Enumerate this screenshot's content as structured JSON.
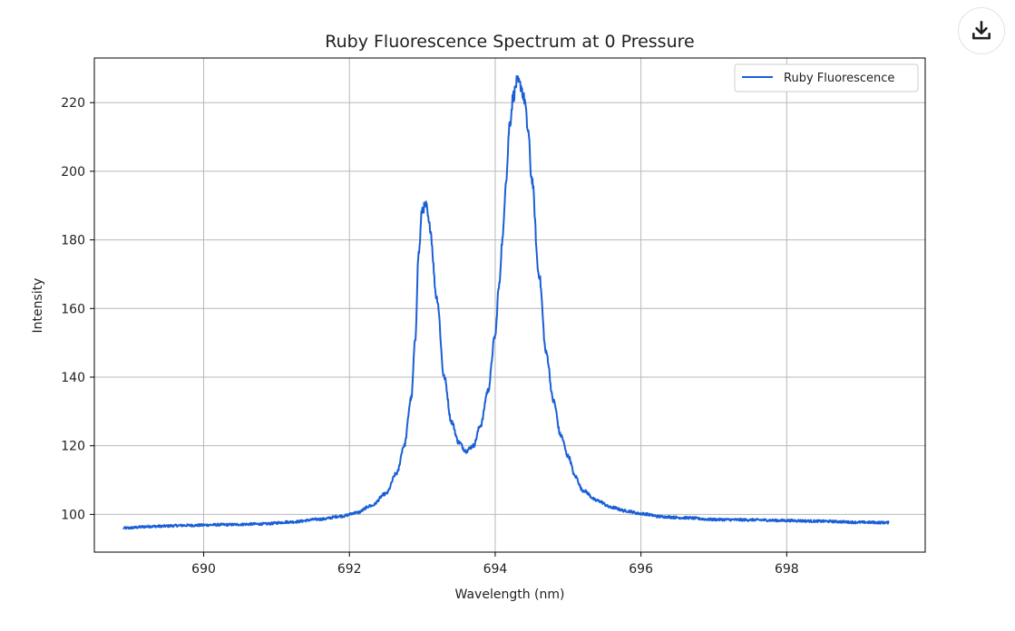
{
  "toolbar": {
    "download_icon": "download-icon"
  },
  "colors": {
    "series_line": "#1a5fd6",
    "grid": "#b8b8b8",
    "axis": "#000000",
    "legend_border": "#cccccc"
  },
  "chart_data": {
    "type": "line",
    "title": "Ruby Fluorescence Spectrum at 0 Pressure",
    "xlabel": "Wavelength (nm)",
    "ylabel": "Intensity",
    "xlim": [
      688.5,
      699.9
    ],
    "ylim": [
      89,
      233
    ],
    "xticks": [
      690,
      692,
      694,
      696,
      698
    ],
    "yticks": [
      100,
      120,
      140,
      160,
      180,
      200,
      220
    ],
    "grid": true,
    "legend_position": "top-right",
    "series": [
      {
        "name": "Ruby Fluorescence",
        "color": "#1a5fd6",
        "x": [
          688.9,
          689.3,
          689.8,
          690.3,
          690.8,
          691.2,
          691.6,
          691.9,
          692.1,
          692.3,
          692.5,
          692.65,
          692.75,
          692.85,
          692.9,
          692.95,
          693.0,
          693.05,
          693.1,
          693.2,
          693.3,
          693.4,
          693.5,
          693.6,
          693.7,
          693.8,
          693.9,
          694.0,
          694.05,
          694.1,
          694.15,
          694.2,
          694.25,
          694.3,
          694.35,
          694.4,
          694.45,
          694.5,
          694.6,
          694.7,
          694.8,
          694.9,
          695.0,
          695.1,
          695.2,
          695.4,
          695.6,
          695.8,
          696.0,
          696.3,
          696.6,
          697.0,
          697.5,
          698.0,
          698.5,
          699.0,
          699.4
        ],
        "y": [
          96,
          96.5,
          96.8,
          97,
          97.2,
          97.8,
          98.6,
          99.5,
          100.5,
          102.5,
          106,
          112,
          120,
          134,
          150,
          176,
          189,
          190,
          184,
          163,
          140,
          127,
          121,
          118.5,
          120,
          126,
          136,
          152,
          166,
          180,
          198,
          214,
          222,
          226,
          225,
          221,
          212,
          198,
          170,
          147,
          133,
          123,
          117,
          111,
          107,
          104,
          102,
          101,
          100.2,
          99.3,
          99,
          98.5,
          98.4,
          98.2,
          98,
          97.7,
          97.6
        ]
      }
    ]
  }
}
